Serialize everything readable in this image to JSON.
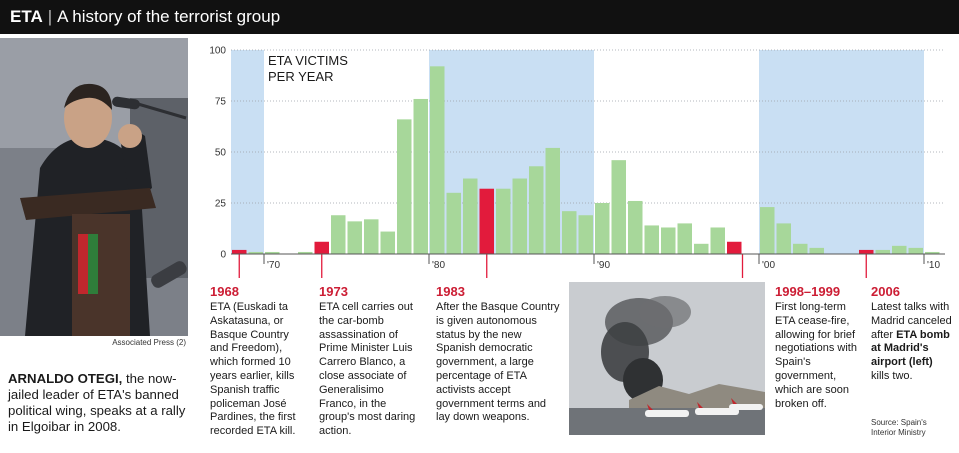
{
  "header": {
    "title": "ETA",
    "separator": "|",
    "subtitle": "A history of the terrorist group"
  },
  "photo": {
    "credit": "Associated Press (2)",
    "caption_name": "ARNALDO OTEGI,",
    "caption_text": "the now-jailed leader of ETA's banned political wing, speaks at a rally in Elgoibar in 2008."
  },
  "chart_data": {
    "type": "bar",
    "title": "ETA VICTIMS PER YEAR",
    "title_lines": [
      "ETA VICTIMS",
      "PER YEAR"
    ],
    "xlabel": "",
    "ylabel": "",
    "x": [
      1968,
      1969,
      1970,
      1971,
      1972,
      1973,
      1974,
      1975,
      1976,
      1977,
      1978,
      1979,
      1980,
      1981,
      1982,
      1983,
      1984,
      1985,
      1986,
      1987,
      1988,
      1989,
      1990,
      1991,
      1992,
      1993,
      1994,
      1995,
      1996,
      1997,
      1998,
      1999,
      2000,
      2001,
      2002,
      2003,
      2004,
      2005,
      2006,
      2007,
      2008,
      2009,
      2010
    ],
    "values": [
      2,
      1,
      1,
      0,
      1,
      6,
      19,
      16,
      17,
      11,
      66,
      76,
      92,
      30,
      37,
      32,
      32,
      37,
      43,
      52,
      21,
      19,
      25,
      46,
      26,
      14,
      13,
      15,
      5,
      13,
      6,
      0,
      23,
      15,
      5,
      3,
      0,
      0,
      2,
      2,
      4,
      3,
      1
    ],
    "highlight_years": [
      1968,
      1973,
      1983,
      1998,
      2006
    ],
    "ylim": [
      0,
      100
    ],
    "yticks": [
      0,
      25,
      50,
      75,
      100
    ],
    "xtick_labels": [
      {
        "year": 1970,
        "label": "'70"
      },
      {
        "year": 1980,
        "label": "'80"
      },
      {
        "year": 1990,
        "label": "'90"
      },
      {
        "year": 2000,
        "label": "'00"
      },
      {
        "year": 2010,
        "label": "'10"
      }
    ],
    "shaded_periods": [
      [
        1968,
        1969
      ],
      [
        1980,
        1989
      ],
      [
        2000,
        2009
      ]
    ],
    "colors": {
      "bar": "#a7d79a",
      "highlight": "#e21b3c",
      "shade": "#c9dff3",
      "axis": "#555555",
      "grid": "#9aa0a6"
    },
    "grid": true,
    "legend": "none"
  },
  "annotations": [
    {
      "year": "1968",
      "text": "ETA (Euskadi ta Askatasuna, or Basque Country and Freedom), which formed 10 years earlier, kills Spanish traffic policeman José Pardines, the first recorded ETA kill."
    },
    {
      "year": "1973",
      "text": "ETA cell carries out the car-bomb assassination of Prime Minister Luis Carrero Blanco, a close associate of Generalisimo Franco, in the group's most daring action."
    },
    {
      "year": "1983",
      "text": "After the Basque Country is given autonomous status by the new Spanish democratic government, a large percentage of ETA activists accept government terms and lay down weapons."
    },
    {
      "year": "1998–1999",
      "text": "First long-term ETA cease-fire, allowing for brief negotiations with Spain's government, which are soon broken off."
    },
    {
      "year": "2006",
      "text_before": "Latest talks with Madrid canceled after",
      "text_bold": "ETA bomb at Madrid's airport (left)",
      "text_after": "kills two."
    }
  ],
  "source": {
    "line1": "Source: Spain's",
    "line2": "Interior Ministry"
  }
}
